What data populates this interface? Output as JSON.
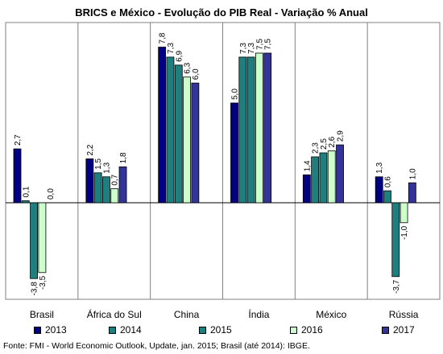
{
  "chart_data": {
    "type": "bar",
    "title": "BRICS e México - Evolução do PIB Real - Variação % Anual",
    "categories": [
      "Brasil",
      "África do Sul",
      "China",
      "Índia",
      "México",
      "Rússia"
    ],
    "series": [
      {
        "name": "2013",
        "color": "#000080",
        "values": [
          2.7,
          2.2,
          7.8,
          5.0,
          1.4,
          1.3
        ],
        "labels": [
          "2,7",
          "2,2",
          "7,8",
          "5,0",
          "1,4",
          "1,3"
        ]
      },
      {
        "name": "2014",
        "color": "#1F7F7F",
        "values": [
          0.1,
          1.5,
          7.3,
          7.3,
          2.3,
          0.6
        ],
        "labels": [
          "0,1",
          "1,5",
          "7,3",
          "7,3",
          "2,3",
          "0,6"
        ]
      },
      {
        "name": "2015",
        "color": "#1F7F7F",
        "values": [
          -3.8,
          1.3,
          6.9,
          7.3,
          2.5,
          -3.7
        ],
        "labels": [
          "-3,8",
          "1,3",
          "6,9",
          "7,3",
          "2,5",
          "-3,7"
        ]
      },
      {
        "name": "2016",
        "color": "#CCFFCC",
        "values": [
          -3.5,
          0.7,
          6.3,
          7.5,
          2.6,
          -1.0
        ],
        "labels": [
          "-3,5",
          "0,7",
          "6,3",
          "7,5",
          "2,6",
          "-1,0"
        ]
      },
      {
        "name": "2017",
        "color": "#333399",
        "values": [
          0.0,
          1.8,
          6.0,
          7.5,
          2.9,
          1.0
        ],
        "labels": [
          "0,0",
          "1,8",
          "6,0",
          "7,5",
          "2,9",
          "1,0"
        ]
      }
    ],
    "ylim": [
      -4.8,
      8.6
    ],
    "grid": false,
    "legend_position": "bottom"
  },
  "source": "Fonte: FMI - World Economic Outlook, Update, jan. 2015; Brasil (até 2014): IBGE."
}
